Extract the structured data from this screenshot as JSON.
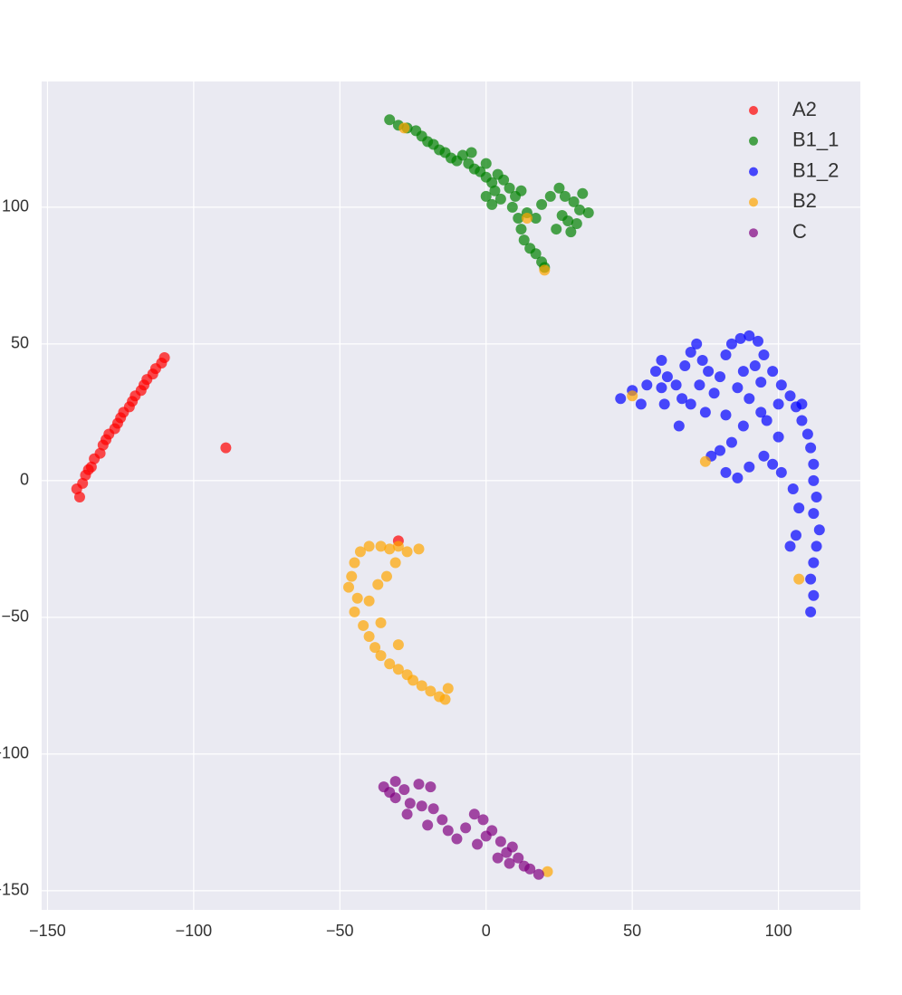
{
  "chart_data": {
    "type": "scatter",
    "xlim": [
      -152,
      128
    ],
    "ylim": [
      -157,
      146
    ],
    "xticks": [
      {
        "value": -150,
        "label": "−150"
      },
      {
        "value": -100,
        "label": "−100"
      },
      {
        "value": -50,
        "label": "−50"
      },
      0,
      50,
      100
    ],
    "yticks": [
      {
        "value": -150,
        "label": "−150"
      },
      {
        "value": -100,
        "label": "−100"
      },
      {
        "value": -50,
        "label": "−50"
      },
      0,
      50,
      100
    ],
    "grid": true,
    "legend": "upper-right",
    "series": [
      {
        "name": "A2",
        "color": "#ff0000",
        "x": [
          -139,
          -140,
          -138,
          -137,
          -136,
          -135,
          -134,
          -132,
          -131,
          -130,
          -129,
          -127,
          -126,
          -125,
          -124,
          -122,
          -121,
          -120,
          -118,
          -117,
          -116,
          -114,
          -113,
          -111,
          -110,
          -89,
          -30
        ],
        "values": [
          -6,
          -3,
          -1,
          2,
          4,
          5,
          8,
          10,
          13,
          15,
          17,
          19,
          21,
          23,
          25,
          27,
          29,
          31,
          33,
          35,
          37,
          39,
          41,
          43,
          45,
          12,
          -22
        ]
      },
      {
        "name": "B1_1",
        "color": "#008000",
        "x": [
          -33,
          -30,
          -27,
          -24,
          -22,
          -20,
          -18,
          -16,
          -14,
          -12,
          -10,
          -8,
          -6,
          -4,
          -2,
          0,
          2,
          4,
          6,
          3,
          0,
          2,
          5,
          8,
          10,
          12,
          9,
          11,
          12,
          13,
          15,
          17,
          19,
          20,
          14,
          17,
          19,
          22,
          25,
          27,
          30,
          32,
          35,
          28,
          24,
          26,
          31,
          29,
          33,
          -5,
          0
        ],
        "values": [
          132,
          130,
          129,
          128,
          126,
          124,
          123,
          121,
          120,
          118,
          117,
          119,
          116,
          114,
          113,
          111,
          109,
          112,
          110,
          106,
          104,
          101,
          103,
          107,
          104,
          106,
          100,
          96,
          92,
          88,
          85,
          83,
          80,
          78,
          98,
          96,
          101,
          104,
          107,
          104,
          102,
          99,
          98,
          95,
          92,
          97,
          94,
          91,
          105,
          120,
          116
        ]
      },
      {
        "name": "B1_2",
        "color": "#0000ff",
        "x": [
          46,
          50,
          53,
          55,
          58,
          60,
          62,
          65,
          67,
          68,
          70,
          72,
          74,
          76,
          73,
          70,
          75,
          78,
          80,
          82,
          84,
          87,
          90,
          93,
          95,
          92,
          88,
          86,
          90,
          94,
          98,
          101,
          104,
          106,
          108,
          110,
          111,
          112,
          112,
          113,
          112,
          114,
          113,
          112,
          111,
          112,
          111,
          106,
          104,
          107,
          105,
          101,
          98,
          95,
          90,
          86,
          82,
          80,
          77,
          84,
          88,
          82,
          96,
          100,
          100,
          94,
          66,
          61,
          60,
          108
        ],
        "values": [
          30,
          33,
          28,
          35,
          40,
          44,
          38,
          35,
          30,
          42,
          47,
          50,
          44,
          40,
          35,
          28,
          25,
          32,
          38,
          46,
          50,
          52,
          53,
          51,
          46,
          42,
          40,
          34,
          30,
          36,
          40,
          35,
          31,
          27,
          22,
          17,
          12,
          6,
          0,
          -6,
          -12,
          -18,
          -24,
          -30,
          -36,
          -42,
          -48,
          -20,
          -24,
          -10,
          -3,
          3,
          6,
          9,
          5,
          1,
          3,
          11,
          9,
          14,
          20,
          24,
          22,
          16,
          28,
          25,
          20,
          28,
          34,
          28
        ]
      },
      {
        "name": "B2",
        "color": "#ffa500",
        "x": [
          -23,
          -27,
          -30,
          -33,
          -36,
          -40,
          -43,
          -45,
          -46,
          -47,
          -44,
          -45,
          -42,
          -40,
          -38,
          -36,
          -33,
          -30,
          -27,
          -25,
          -22,
          -19,
          -16,
          -14,
          -34,
          -31,
          -37,
          -40,
          -36,
          -30,
          -13,
          -28,
          14,
          20,
          50,
          75,
          107,
          21
        ],
        "values": [
          -25,
          -26,
          -24,
          -25,
          -24,
          -24,
          -26,
          -30,
          -35,
          -39,
          -43,
          -48,
          -53,
          -57,
          -61,
          -64,
          -67,
          -69,
          -71,
          -73,
          -75,
          -77,
          -79,
          -80,
          -35,
          -30,
          -38,
          -44,
          -52,
          -60,
          -76,
          129,
          96,
          77,
          31,
          7,
          -36,
          -143
        ]
      },
      {
        "name": "C",
        "color": "#800080",
        "x": [
          -35,
          -31,
          -31,
          -28,
          -26,
          -23,
          -22,
          -19,
          -18,
          -15,
          -13,
          -10,
          -7,
          -4,
          -1,
          2,
          5,
          7,
          9,
          11,
          13,
          15,
          18,
          0,
          -3,
          -27,
          -33,
          -20,
          4,
          8
        ],
        "values": [
          -112,
          -110,
          -116,
          -113,
          -118,
          -111,
          -119,
          -112,
          -120,
          -124,
          -128,
          -131,
          -127,
          -122,
          -124,
          -128,
          -132,
          -136,
          -134,
          -138,
          -141,
          -142,
          -144,
          -130,
          -133,
          -122,
          -114,
          -126,
          -138,
          -140
        ]
      }
    ]
  }
}
